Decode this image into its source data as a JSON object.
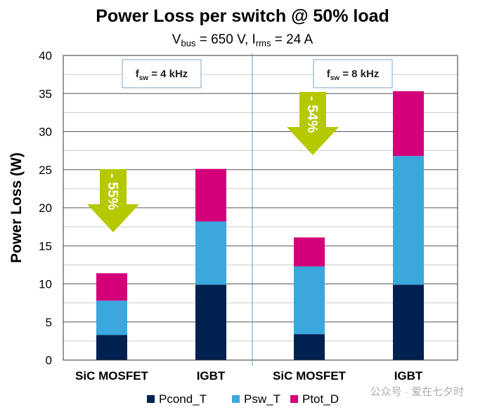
{
  "chart_data": {
    "type": "bar",
    "stacked": true,
    "title": "Power Loss per switch @ 50% load",
    "subtitle": {
      "v_main": "V",
      "v_sub": "bus",
      "v_rest": " = 650 V, I",
      "i_sub": "rms",
      "i_rest": " = 24 A"
    },
    "ylabel": "Power  Loss (W)",
    "xlabel": "",
    "ylim": [
      0,
      40
    ],
    "yticks": [
      "0",
      "5",
      "10",
      "15",
      "20",
      "25",
      "30",
      "35",
      "40"
    ],
    "grid": true,
    "legend_position": "bottom",
    "categories": [
      "SiC MOSFET",
      "IGBT",
      "SiC MOSFET",
      "IGBT"
    ],
    "series": [
      {
        "name": "Pcond_T",
        "color": "#002050",
        "values": [
          3.3,
          9.9,
          3.4,
          9.9
        ]
      },
      {
        "name": "Psw_T",
        "color": "#3aa8dc",
        "values": [
          4.5,
          8.3,
          8.9,
          16.9
        ]
      },
      {
        "name": "Ptot_D",
        "color": "#d4007a",
        "values": [
          3.6,
          6.9,
          3.8,
          8.5
        ]
      }
    ],
    "groups": [
      {
        "label_main": "f",
        "label_sub": "sw",
        "label_rest": " = 4 kHz",
        "reduction": "- 55%"
      },
      {
        "label_main": "f",
        "label_sub": "sw",
        "label_rest": " = 8 kHz",
        "reduction": "- 54%"
      }
    ],
    "arrow_color": "#b5c800"
  },
  "watermark": "公众号 · 爱在七夕时"
}
